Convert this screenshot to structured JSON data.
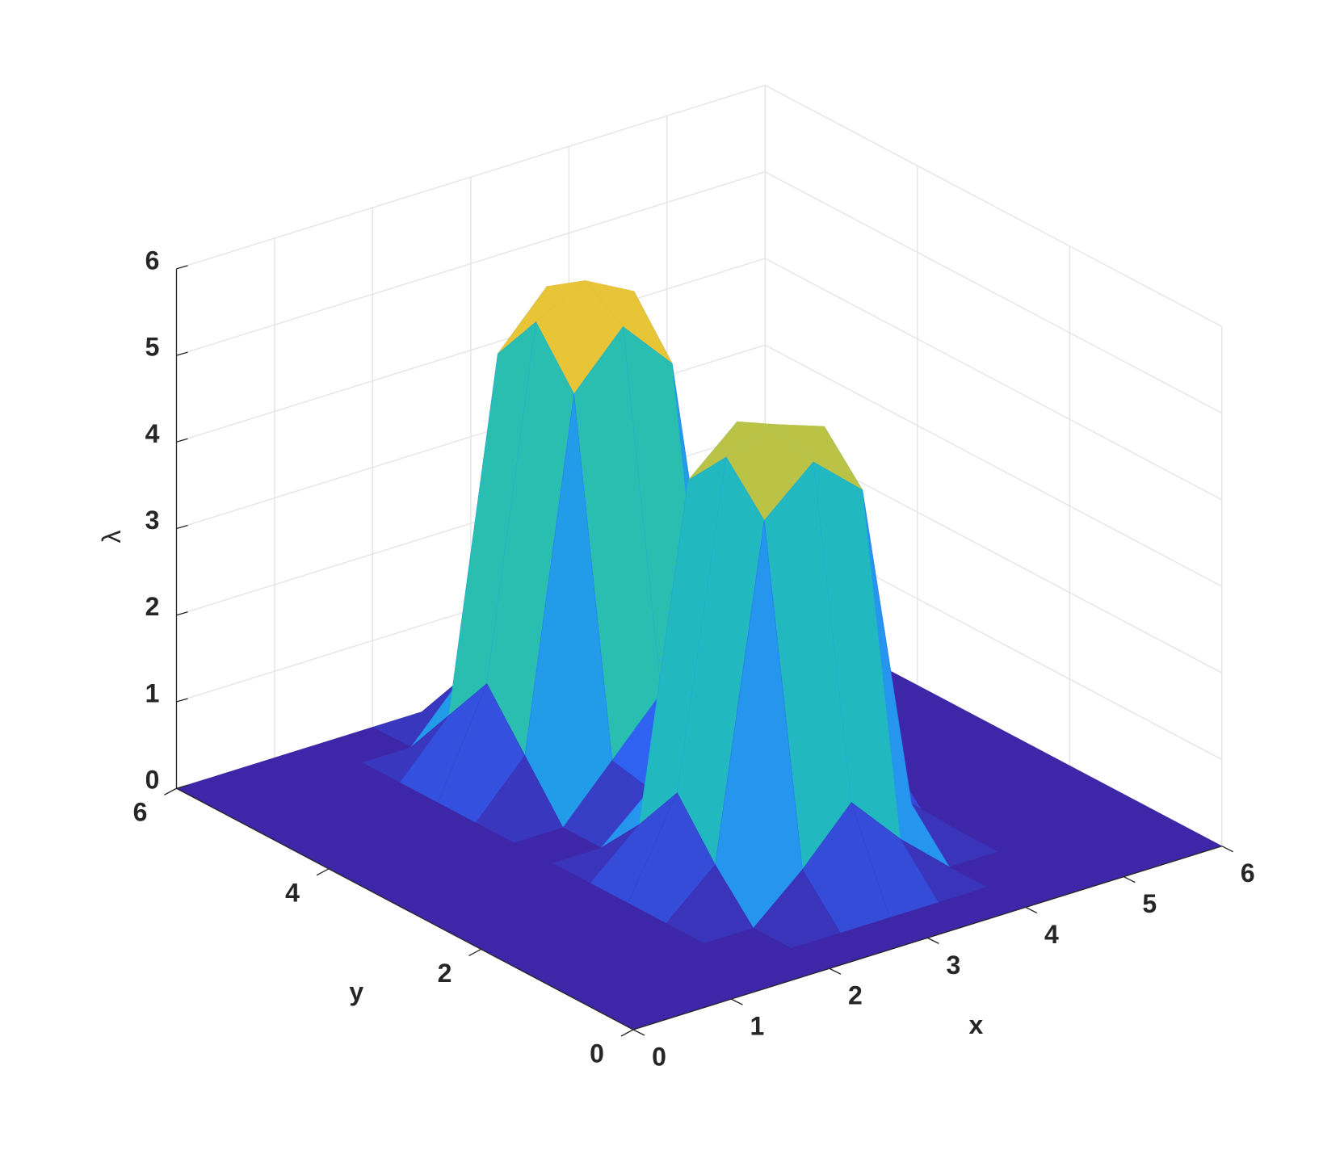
{
  "chart_data": {
    "type": "surface",
    "xlabel": "x",
    "ylabel": "y",
    "zlabel": "λ",
    "x": [
      0,
      0.5,
      1,
      1.5,
      2,
      2.5,
      3,
      3.5,
      4,
      4.5,
      5,
      5.5,
      6
    ],
    "y": [
      0,
      0.5,
      1,
      1.5,
      2,
      2.5,
      3,
      3.5,
      4,
      4.5,
      5,
      5.5,
      6
    ],
    "z": [
      [
        0,
        0,
        0,
        0,
        0,
        0,
        0,
        0,
        0,
        0,
        0,
        0,
        0
      ],
      [
        0,
        0,
        0,
        0,
        0,
        0,
        0,
        0,
        0,
        0,
        0,
        0,
        0
      ],
      [
        0,
        0,
        0,
        0,
        0,
        0.5,
        1.1,
        0.5,
        0,
        0,
        0,
        0,
        0
      ],
      [
        0,
        0,
        0,
        0,
        0.5,
        4.3,
        4.8,
        4.3,
        0.5,
        0,
        0,
        0,
        0
      ],
      [
        0,
        0,
        0,
        0,
        1.1,
        4.8,
        5.0,
        4.8,
        1.1,
        0,
        0,
        0,
        0
      ],
      [
        0,
        0,
        0,
        0,
        0.5,
        4.3,
        4.8,
        4.3,
        0.5,
        0,
        0,
        0,
        0
      ],
      [
        0,
        0,
        0,
        0,
        0,
        0.5,
        1.1,
        0.5,
        0,
        0,
        0,
        0,
        0
      ],
      [
        0,
        0,
        0,
        0,
        0,
        0.6,
        1.2,
        0.6,
        0,
        0,
        0,
        0,
        0
      ],
      [
        0,
        0,
        0,
        0,
        0.6,
        4.6,
        5.2,
        4.6,
        0.6,
        0,
        0,
        0,
        0
      ],
      [
        0,
        0,
        0,
        0,
        1.2,
        5.2,
        5.5,
        5.2,
        1.2,
        0,
        0,
        0,
        0
      ],
      [
        0,
        0,
        0,
        0,
        0.6,
        4.6,
        5.2,
        4.6,
        0.6,
        0,
        0,
        0,
        0
      ],
      [
        0,
        0,
        0,
        0,
        0,
        0.6,
        1.2,
        0.6,
        0,
        0,
        0,
        0,
        0
      ],
      [
        0,
        0,
        0,
        0,
        0,
        0,
        0,
        0,
        0,
        0,
        0,
        0,
        0
      ]
    ],
    "xlim": [
      0,
      6
    ],
    "ylim": [
      0,
      6
    ],
    "zlim": [
      0,
      6
    ],
    "xticks": [
      0,
      1,
      2,
      3,
      4,
      5,
      6
    ],
    "yticks": [
      0,
      2,
      4,
      6
    ],
    "zticks": [
      0,
      1,
      2,
      3,
      4,
      5,
      6
    ],
    "grid": true,
    "colormap": [
      "#3e26a8",
      "#2f5ef0",
      "#2e87f7",
      "#1aa9df",
      "#25bdb5",
      "#7cc95a",
      "#e6bf3a",
      "#f9fb15"
    ]
  }
}
